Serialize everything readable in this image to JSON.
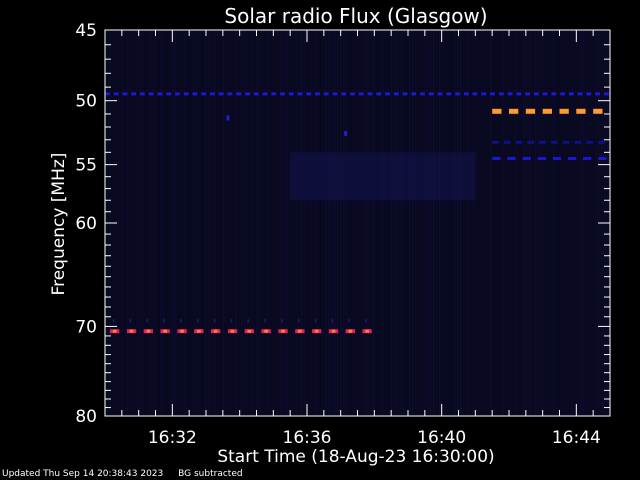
{
  "chart_data": {
    "type": "heatmap",
    "title": "Solar radio Flux (Glasgow)",
    "xlabel": "Start Time (18-Aug-23 16:30:00)",
    "ylabel": "Frequency [MHz]",
    "x_unit": "minutes after 16:30",
    "xlim": [
      0,
      15
    ],
    "ylim": [
      45,
      80
    ],
    "y_inverted": true,
    "y_scale": "log",
    "x_tick_labels": [
      "16:32",
      "16:36",
      "16:40",
      "16:44"
    ],
    "x_tick_positions": [
      2,
      6,
      10,
      14
    ],
    "y_ticks": [
      45,
      50,
      55,
      60,
      70,
      80
    ],
    "background_color": "#050510",
    "plot_bg_color": "#08081e",
    "features": [
      {
        "name": "interference band 49.5 MHz",
        "freq": 49.5,
        "x_start": 0,
        "x_end": 15,
        "intensity": "medium",
        "color": "#1a1ad8",
        "dash_period": 0.26
      },
      {
        "name": "interference band 70.5 MHz",
        "freq": 70.5,
        "x_start": 0.15,
        "x_end": 8.1,
        "intensity": "high",
        "color": "#e02060",
        "dash_period": 0.5
      },
      {
        "name": "interference band 50.8 MHz",
        "freq": 50.8,
        "x_start": 11.5,
        "x_end": 15,
        "intensity": "very high",
        "color": "#ff9a30",
        "dash_period": 0.5
      },
      {
        "name": "interference band 53.2 MHz",
        "freq": 53.2,
        "x_start": 11.5,
        "x_end": 15,
        "intensity": "low",
        "color": "#101088",
        "dash_period": 0.35
      },
      {
        "name": "interference band 54.5 MHz",
        "freq": 54.5,
        "x_start": 11.5,
        "x_end": 15,
        "intensity": "medium",
        "color": "#1818d0",
        "dash_period": 0.45
      }
    ],
    "spots": [
      {
        "x": 3.65,
        "freq": 51.3,
        "color": "#2020d0"
      },
      {
        "x": 7.15,
        "freq": 52.5,
        "color": "#2020d0"
      }
    ]
  },
  "footer": {
    "updated": "Updated Thu Sep 14 20:38:43 2023",
    "note": "BG subtracted"
  }
}
